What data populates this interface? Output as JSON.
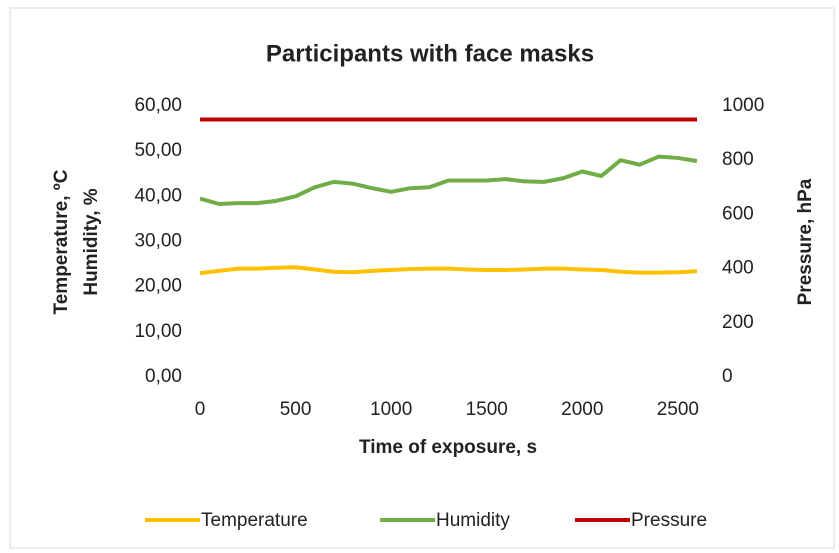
{
  "chart_data": {
    "type": "line",
    "title": "Participants with face masks",
    "xlabel": "Time of exposure, s",
    "ylabel": [
      "Temperature, ºC",
      "Humidity, %"
    ],
    "y2label": "Pressure, hPa",
    "x": [
      0,
      100,
      200,
      300,
      400,
      500,
      600,
      700,
      800,
      900,
      1000,
      1100,
      1200,
      1300,
      1400,
      1500,
      1600,
      1700,
      1800,
      1900,
      2000,
      2100,
      2200,
      2300,
      2400,
      2500,
      2600
    ],
    "series": [
      {
        "name": "Temperature",
        "color": "#ffc000",
        "values": [
          23,
          23.5,
          24,
          24,
          24.2,
          24.3,
          23.8,
          23.3,
          23.2,
          23.5,
          23.7,
          23.9,
          24,
          24,
          23.8,
          23.7,
          23.7,
          23.8,
          24,
          24,
          23.8,
          23.7,
          23.3,
          23.1,
          23.1,
          23.2,
          23.4
        ]
      },
      {
        "name": "Humidity",
        "color": "#70ad47",
        "values": [
          39.5,
          38.3,
          38.5,
          38.5,
          39,
          40,
          42,
          43.2,
          42.8,
          41.8,
          41,
          41.8,
          42,
          43.5,
          43.5,
          43.5,
          43.8,
          43.3,
          43.2,
          44,
          45.5,
          44.5,
          48,
          47,
          48.8,
          48.5,
          47.8
        ]
      },
      {
        "name": "Pressure",
        "color": "#c00000",
        "axis": "y2",
        "values": [
          950,
          950,
          950,
          950,
          950,
          950,
          950,
          950,
          950,
          950,
          950,
          950,
          950,
          950,
          950,
          950,
          950,
          950,
          950,
          950,
          950,
          950,
          950,
          950,
          950,
          950,
          950
        ]
      }
    ],
    "xlim": [
      0,
      2600
    ],
    "xticks": [
      0,
      500,
      1000,
      1500,
      2000,
      2500
    ],
    "ylim": [
      0,
      60
    ],
    "yticks": [
      {
        "value": 0,
        "label": "0,00"
      },
      {
        "value": 10,
        "label": "10,00"
      },
      {
        "value": 20,
        "label": "20,00"
      },
      {
        "value": 30,
        "label": "30,00"
      },
      {
        "value": 40,
        "label": "40,00"
      },
      {
        "value": 50,
        "label": "50,00"
      },
      {
        "value": 60,
        "label": "60,00"
      }
    ],
    "y2lim": [
      0,
      1000
    ],
    "y2ticks": [
      0,
      200,
      400,
      600,
      800,
      1000
    ],
    "legend": "bottom",
    "grid": false
  }
}
